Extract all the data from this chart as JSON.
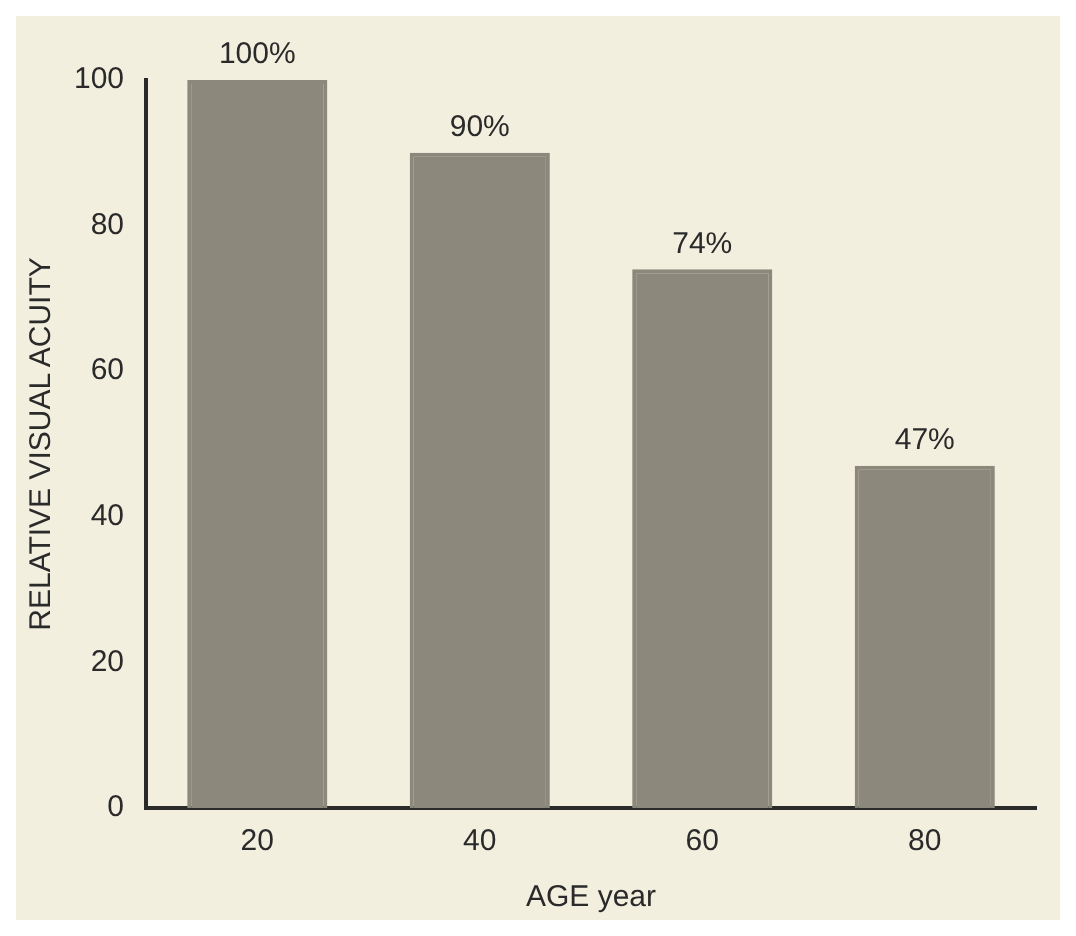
{
  "chart_data": {
    "type": "bar",
    "xlabel": "AGE year",
    "ylabel": "RELATIVE VISUAL ACUITY",
    "categories": [
      "20",
      "40",
      "60",
      "80"
    ],
    "values": [
      100,
      90,
      74,
      47
    ],
    "value_labels": [
      "100%",
      "90%",
      "74%",
      "47%"
    ],
    "color": "#8c887c",
    "ylim": [
      0,
      100
    ],
    "yticks": [
      0,
      20,
      40,
      60,
      80,
      100
    ],
    "grid": false,
    "legend": false
  }
}
